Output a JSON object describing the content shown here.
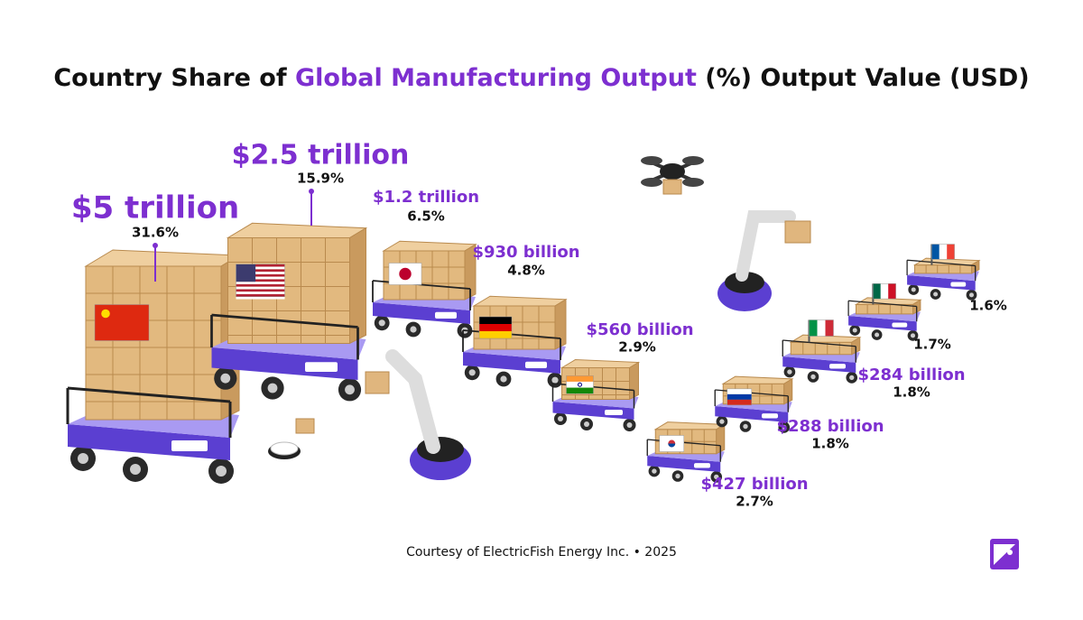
{
  "title": {
    "prefix": "Country Share of ",
    "highlight": "Global Manufacturing Output",
    "suffix": " (%) Output Value (USD)"
  },
  "items": [
    {
      "value": "$5 trillion",
      "share": "31.6%"
    },
    {
      "value": "$2.5 trillion",
      "share": "15.9%"
    },
    {
      "value": "$1.2 trillion",
      "share": "6.5%"
    },
    {
      "value": "$930 billion",
      "share": "4.8%"
    },
    {
      "value": "$560 billion",
      "share": "2.9%"
    },
    {
      "value": "$427 billion",
      "share": "2.7%"
    },
    {
      "value": "$288 billion",
      "share": "1.8%"
    },
    {
      "value": "$284 billion",
      "share": "1.8%"
    },
    {
      "share": "1.7%"
    },
    {
      "share": "1.6%"
    }
  ],
  "footer": "Courtesy of ElectricFish Energy Inc. • 2025"
}
